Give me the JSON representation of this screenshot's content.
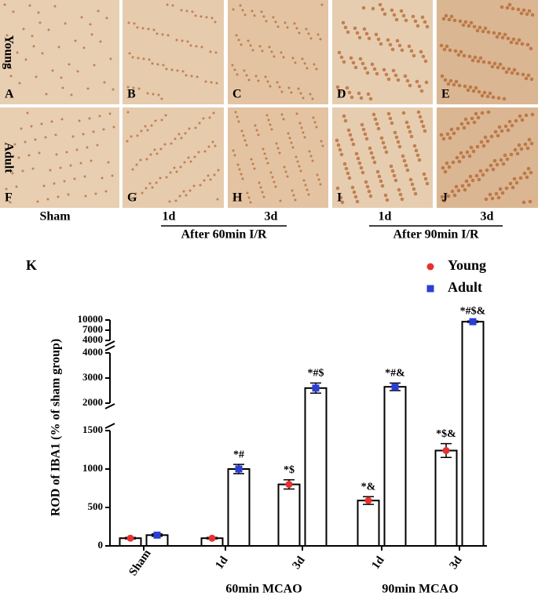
{
  "figure": {
    "row_labels": [
      "Young",
      "Adult"
    ],
    "panels": [
      {
        "label": "A"
      },
      {
        "label": "B"
      },
      {
        "label": "C"
      },
      {
        "label": "D"
      },
      {
        "label": "E"
      },
      {
        "label": "F"
      },
      {
        "label": "G"
      },
      {
        "label": "H"
      },
      {
        "label": "I"
      },
      {
        "label": "J"
      }
    ],
    "column_labels": [
      "Sham",
      "1d",
      "3d",
      "1d",
      "3d"
    ],
    "group_labels": [
      "After 60min I/R",
      "After 90min I/R"
    ]
  },
  "chart_data": {
    "type": "bar",
    "panel_label": "K",
    "y_label": "ROD of IBA1 (% of sham group)",
    "categories": [
      "Sham",
      "1d",
      "3d",
      "1d",
      "3d"
    ],
    "category_groups": [
      "60min MCAO",
      "90min MCAO"
    ],
    "y_segments": [
      {
        "ylim": [
          0,
          1500
        ],
        "yticks": [
          0,
          500,
          1000,
          1500
        ]
      },
      {
        "ylim": [
          2000,
          4000
        ],
        "yticks": [
          2000,
          3000,
          4000
        ]
      },
      {
        "ylim": [
          4000,
          10000
        ],
        "yticks": [
          4000,
          7000,
          10000
        ]
      }
    ],
    "series": [
      {
        "name": "Young",
        "color": "#e8302e",
        "marker": "circle",
        "values": [
          100,
          100,
          800,
          590,
          1240
        ],
        "errors": [
          10,
          10,
          60,
          50,
          90
        ],
        "significance": [
          null,
          null,
          "*$",
          "*&",
          "*$&"
        ]
      },
      {
        "name": "Adult",
        "color": "#2b3fd6",
        "marker": "square",
        "values": [
          140,
          1000,
          2600,
          2650,
          9500
        ],
        "errors": [
          15,
          60,
          200,
          150,
          200
        ],
        "significance": [
          null,
          "*#",
          "*#$",
          "*#&",
          "*#$&"
        ]
      }
    ]
  }
}
